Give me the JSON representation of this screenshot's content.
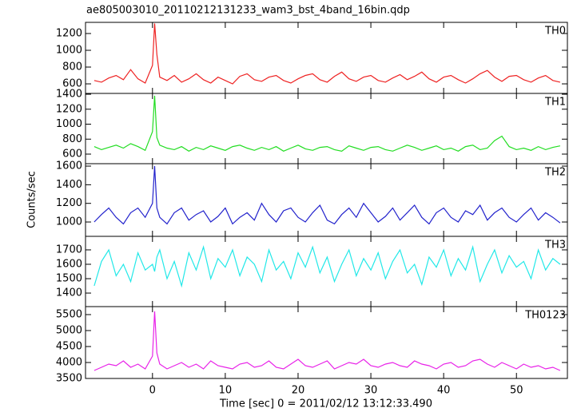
{
  "title": "ae805003010_20110212131233_wam3_bst_4band_16bin.qdp",
  "y_label": "Counts/sec",
  "x_label": "Time [sec] 0 = 2011/02/12 13:12:33.490",
  "chart_data": [
    {
      "type": "line",
      "title": "TH0",
      "color": "#ee2222",
      "x": [
        -8,
        -7,
        -6,
        -5,
        -4,
        -3,
        -2,
        -1,
        0,
        0.3,
        0.6,
        1,
        2,
        3,
        4,
        5,
        6,
        7,
        8,
        9,
        10,
        11,
        12,
        13,
        14,
        15,
        16,
        17,
        18,
        19,
        20,
        21,
        22,
        23,
        24,
        25,
        26,
        27,
        28,
        29,
        30,
        31,
        32,
        33,
        34,
        35,
        36,
        37,
        38,
        39,
        40,
        41,
        42,
        43,
        44,
        45,
        46,
        47,
        48,
        49,
        50,
        51,
        52,
        53,
        54,
        55,
        56
      ],
      "values": [
        640,
        620,
        670,
        700,
        650,
        770,
        660,
        610,
        820,
        1320,
        950,
        680,
        640,
        700,
        620,
        660,
        720,
        650,
        610,
        680,
        640,
        600,
        690,
        720,
        650,
        630,
        680,
        700,
        640,
        610,
        660,
        700,
        720,
        650,
        620,
        690,
        740,
        660,
        630,
        680,
        700,
        640,
        620,
        670,
        710,
        650,
        690,
        740,
        660,
        620,
        680,
        700,
        650,
        610,
        660,
        720,
        760,
        680,
        630,
        690,
        700,
        650,
        620,
        670,
        700,
        640,
        620
      ],
      "xlim": [
        -9.2,
        57
      ],
      "ylim": [
        486,
        1333
      ],
      "xticks": [
        0,
        10,
        20,
        30,
        40,
        50
      ],
      "yticks": [
        600,
        800,
        1000,
        1200
      ]
    },
    {
      "type": "line",
      "title": "TH1",
      "color": "#22dd22",
      "x": [
        -8,
        -7,
        -6,
        -5,
        -4,
        -3,
        -2,
        -1,
        0,
        0.3,
        0.6,
        1,
        2,
        3,
        4,
        5,
        6,
        7,
        8,
        9,
        10,
        11,
        12,
        13,
        14,
        15,
        16,
        17,
        18,
        19,
        20,
        21,
        22,
        23,
        24,
        25,
        26,
        27,
        28,
        29,
        30,
        31,
        32,
        33,
        34,
        35,
        36,
        37,
        38,
        39,
        40,
        41,
        42,
        43,
        44,
        45,
        46,
        47,
        48,
        49,
        50,
        51,
        52,
        53,
        54,
        55,
        56
      ],
      "values": [
        700,
        660,
        690,
        720,
        680,
        740,
        700,
        650,
        900,
        1380,
        820,
        720,
        680,
        660,
        700,
        640,
        690,
        660,
        710,
        680,
        650,
        700,
        720,
        680,
        650,
        690,
        660,
        700,
        640,
        680,
        720,
        670,
        650,
        690,
        700,
        660,
        640,
        710,
        680,
        650,
        690,
        700,
        660,
        640,
        680,
        720,
        690,
        650,
        680,
        710,
        660,
        680,
        640,
        700,
        720,
        660,
        680,
        780,
        840,
        700,
        660,
        680,
        650,
        700,
        660,
        690,
        710
      ],
      "xlim": [
        -9.2,
        57
      ],
      "ylim": [
        472,
        1411
      ],
      "xticks": [
        0,
        10,
        20,
        30,
        40,
        50
      ],
      "yticks": [
        600,
        800,
        1000,
        1200,
        1400
      ]
    },
    {
      "type": "line",
      "title": "TH2",
      "color": "#2222cc",
      "x": [
        -8,
        -7,
        -6,
        -5,
        -4,
        -3,
        -2,
        -1,
        0,
        0.3,
        0.6,
        1,
        2,
        3,
        4,
        5,
        6,
        7,
        8,
        9,
        10,
        11,
        12,
        13,
        14,
        15,
        16,
        17,
        18,
        19,
        20,
        21,
        22,
        23,
        24,
        25,
        26,
        27,
        28,
        29,
        30,
        31,
        32,
        33,
        34,
        35,
        36,
        37,
        38,
        39,
        40,
        41,
        42,
        43,
        44,
        45,
        46,
        47,
        48,
        49,
        50,
        51,
        52,
        53,
        54,
        55,
        56
      ],
      "values": [
        1000,
        1080,
        1150,
        1050,
        980,
        1100,
        1150,
        1050,
        1200,
        1600,
        1150,
        1050,
        980,
        1100,
        1150,
        1020,
        1080,
        1120,
        1000,
        1060,
        1150,
        980,
        1050,
        1100,
        1020,
        1200,
        1080,
        1000,
        1120,
        1150,
        1050,
        1000,
        1100,
        1180,
        1020,
        980,
        1080,
        1150,
        1050,
        1200,
        1100,
        1000,
        1060,
        1150,
        1020,
        1100,
        1180,
        1050,
        980,
        1100,
        1150,
        1050,
        1000,
        1120,
        1080,
        1180,
        1020,
        1100,
        1150,
        1050,
        1000,
        1080,
        1150,
        1020,
        1100,
        1050,
        990
      ],
      "xlim": [
        -9.2,
        57
      ],
      "ylim": [
        846,
        1626
      ],
      "xticks": [
        0,
        10,
        20,
        30,
        40,
        50
      ],
      "yticks": [
        1000,
        1200,
        1400,
        1600
      ]
    },
    {
      "type": "line",
      "title": "TH3",
      "color": "#22e8e8",
      "x": [
        -8,
        -7,
        -6,
        -5,
        -4,
        -3,
        -2,
        -1,
        0,
        0.3,
        0.6,
        1,
        2,
        3,
        4,
        5,
        6,
        7,
        8,
        9,
        10,
        11,
        12,
        13,
        14,
        15,
        16,
        17,
        18,
        19,
        20,
        21,
        22,
        23,
        24,
        25,
        26,
        27,
        28,
        29,
        30,
        31,
        32,
        33,
        34,
        35,
        36,
        37,
        38,
        39,
        40,
        41,
        42,
        43,
        44,
        45,
        46,
        47,
        48,
        49,
        50,
        51,
        52,
        53,
        54,
        55,
        56
      ],
      "values": [
        1450,
        1620,
        1700,
        1520,
        1600,
        1480,
        1680,
        1560,
        1600,
        1550,
        1650,
        1700,
        1500,
        1620,
        1450,
        1680,
        1560,
        1720,
        1500,
        1640,
        1580,
        1700,
        1520,
        1650,
        1600,
        1480,
        1700,
        1560,
        1620,
        1500,
        1680,
        1580,
        1720,
        1540,
        1650,
        1480,
        1600,
        1700,
        1520,
        1640,
        1560,
        1680,
        1500,
        1620,
        1700,
        1540,
        1600,
        1460,
        1650,
        1580,
        1700,
        1520,
        1640,
        1560,
        1720,
        1480,
        1600,
        1700,
        1540,
        1660,
        1580,
        1620,
        1500,
        1700,
        1560,
        1640,
        1600
      ],
      "xlim": [
        -9.2,
        57
      ],
      "ylim": [
        1306,
        1794
      ],
      "xticks": [
        0,
        10,
        20,
        30,
        40,
        50
      ],
      "yticks": [
        1400,
        1500,
        1600,
        1700
      ]
    },
    {
      "type": "line",
      "title": "TH0123",
      "color": "#e822e8",
      "x": [
        -8,
        -7,
        -6,
        -5,
        -4,
        -3,
        -2,
        -1,
        0,
        0.3,
        0.6,
        1,
        2,
        3,
        4,
        5,
        6,
        7,
        8,
        9,
        10,
        11,
        12,
        13,
        14,
        15,
        16,
        17,
        18,
        19,
        20,
        21,
        22,
        23,
        24,
        25,
        26,
        27,
        28,
        29,
        30,
        31,
        32,
        33,
        34,
        35,
        36,
        37,
        38,
        39,
        40,
        41,
        42,
        43,
        44,
        45,
        46,
        47,
        48,
        49,
        50,
        51,
        52,
        53,
        54,
        55,
        56
      ],
      "values": [
        3750,
        3850,
        3950,
        3900,
        4050,
        3850,
        3950,
        3800,
        4200,
        5600,
        4300,
        3950,
        3800,
        3900,
        4000,
        3850,
        3950,
        3800,
        4050,
        3900,
        3850,
        3800,
        3950,
        4000,
        3850,
        3900,
        4050,
        3850,
        3800,
        3950,
        4100,
        3900,
        3850,
        3950,
        4050,
        3800,
        3900,
        4000,
        3950,
        4100,
        3900,
        3850,
        3950,
        4000,
        3900,
        3850,
        4050,
        3950,
        3900,
        3800,
        3950,
        4000,
        3850,
        3900,
        4050,
        4100,
        3950,
        3850,
        4000,
        3900,
        3800,
        3950,
        3850,
        3900,
        3800,
        3850,
        3750
      ],
      "xlim": [
        -9.2,
        57
      ],
      "ylim": [
        3500,
        5750
      ],
      "xticks": [
        0,
        10,
        20,
        30,
        40,
        50
      ],
      "yticks": [
        3500,
        4000,
        4500,
        5000,
        5500
      ]
    }
  ]
}
